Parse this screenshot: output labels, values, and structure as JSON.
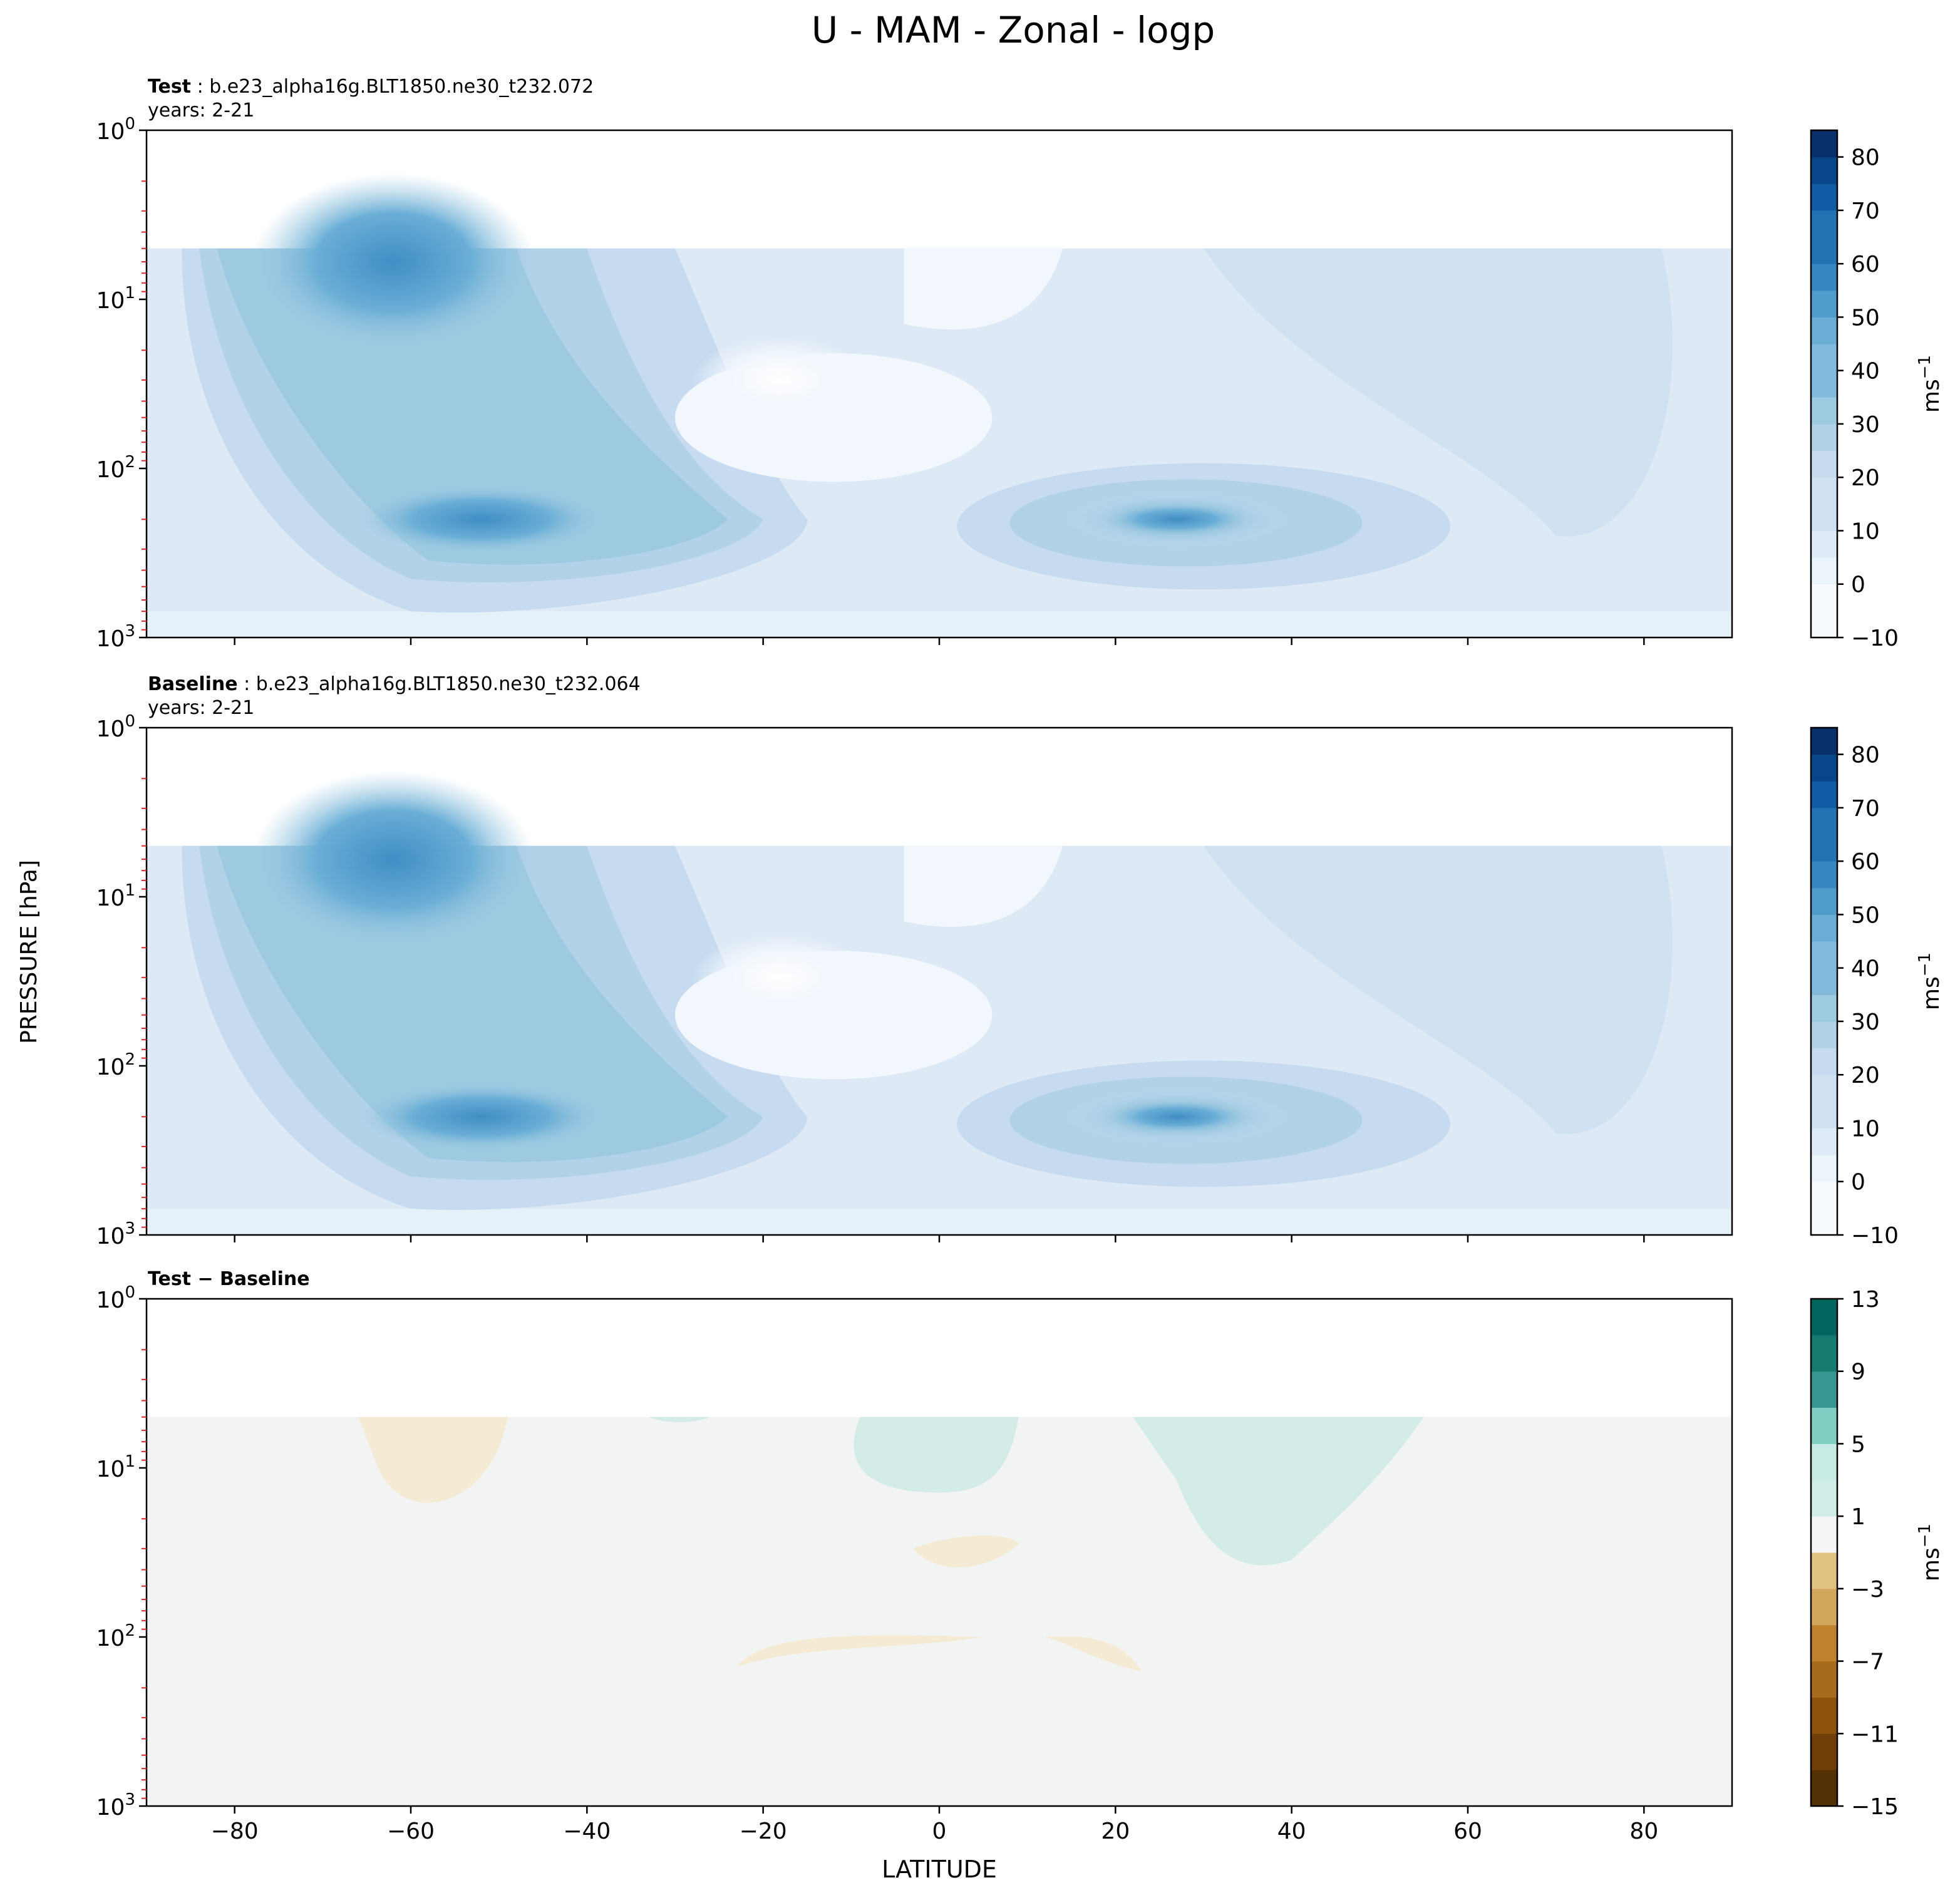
{
  "page_title": "U - MAM - Zonal - logp",
  "ylabel": "PRESSURE [hPa]",
  "xlabel": "LATITUDE",
  "colorbar_unit_base": "ms",
  "colorbar_unit_exp": "−1",
  "panels": [
    {
      "title_bold": "Test",
      "title_rest": " : b.e23_alpha16g.BLT1850.ne30_t232.072",
      "subtitle": "years: 2-21"
    },
    {
      "title_bold": "Baseline",
      "title_rest": " : b.e23_alpha16g.BLT1850.ne30_t232.064",
      "subtitle": "years: 2-21"
    },
    {
      "title_bold": "Test − Baseline",
      "title_rest": "",
      "subtitle": ""
    }
  ],
  "chart_data": [
    {
      "type": "heatmap",
      "panel": "Test",
      "x": {
        "label": "",
        "lim": [
          -90,
          90
        ],
        "ticks": [
          -80,
          -60,
          -40,
          -20,
          0,
          20,
          40,
          60,
          80
        ]
      },
      "y": {
        "label": "PRESSURE [hPa]",
        "scale": "log",
        "lim": [
          1000,
          1
        ],
        "ticks": [
          1,
          10,
          100,
          1000
        ],
        "ticklabels": [
          "10^0",
          "10^1",
          "10^2",
          "10^3"
        ]
      },
      "data_top_hPa": 5,
      "colorbar": {
        "min": -10,
        "max": 85,
        "ticks": [
          -10,
          0,
          10,
          20,
          30,
          40,
          50,
          60,
          70,
          80
        ],
        "unit": "ms^-1",
        "cmap": "Blues"
      },
      "features": [
        {
          "what": "SH stratospheric jet max",
          "lat": -62,
          "hPa": 5,
          "value": 45
        },
        {
          "what": "SH tropospheric jet max",
          "lat": -52,
          "hPa": 200,
          "value": 40
        },
        {
          "what": "NH tropospheric jet max",
          "lat": 27,
          "hPa": 200,
          "value": 42
        },
        {
          "what": "tropical easterly min",
          "lat": -18,
          "hPa": 30,
          "value": -5
        }
      ]
    },
    {
      "type": "heatmap",
      "panel": "Baseline",
      "x": {
        "label": "",
        "lim": [
          -90,
          90
        ],
        "ticks": [
          -80,
          -60,
          -40,
          -20,
          0,
          20,
          40,
          60,
          80
        ]
      },
      "y": {
        "label": "PRESSURE [hPa]",
        "scale": "log",
        "lim": [
          1000,
          1
        ],
        "ticks": [
          1,
          10,
          100,
          1000
        ],
        "ticklabels": [
          "10^0",
          "10^1",
          "10^2",
          "10^3"
        ]
      },
      "data_top_hPa": 5,
      "colorbar": {
        "min": -10,
        "max": 85,
        "ticks": [
          -10,
          0,
          10,
          20,
          30,
          40,
          50,
          60,
          70,
          80
        ],
        "unit": "ms^-1",
        "cmap": "Blues"
      },
      "features": [
        {
          "what": "SH stratospheric jet max",
          "lat": -62,
          "hPa": 5,
          "value": 45
        },
        {
          "what": "SH tropospheric jet max",
          "lat": -52,
          "hPa": 200,
          "value": 40
        },
        {
          "what": "NH tropospheric jet max",
          "lat": 27,
          "hPa": 200,
          "value": 43
        },
        {
          "what": "tropical easterly min",
          "lat": -18,
          "hPa": 30,
          "value": -5
        }
      ]
    },
    {
      "type": "heatmap",
      "panel": "Test − Baseline",
      "x": {
        "label": "LATITUDE",
        "lim": [
          -90,
          90
        ],
        "ticks": [
          -80,
          -60,
          -40,
          -20,
          0,
          20,
          40,
          60,
          80
        ],
        "ticklabels": [
          "−80",
          "−60",
          "−40",
          "−20",
          "0",
          "20",
          "40",
          "60",
          "80"
        ]
      },
      "y": {
        "label": "PRESSURE [hPa]",
        "scale": "log",
        "lim": [
          1000,
          1
        ],
        "ticks": [
          1,
          10,
          100,
          1000
        ],
        "ticklabels": [
          "10^0",
          "10^1",
          "10^2",
          "10^3"
        ]
      },
      "data_top_hPa": 5,
      "colorbar": {
        "min": -15,
        "max": 13,
        "ticks": [
          -15,
          -11,
          -7,
          -3,
          1,
          5,
          9,
          13
        ],
        "unit": "ms^-1",
        "cmap": "BrBG"
      },
      "features": [
        {
          "what": "negative patch",
          "lat": -55,
          "hPa": 8,
          "value": -2
        },
        {
          "what": "positive patch",
          "lat": 0,
          "hPa": 8,
          "value": 2
        },
        {
          "what": "positive patch",
          "lat": 40,
          "hPa": 15,
          "value": 2
        },
        {
          "what": "negative patch",
          "lat": 5,
          "hPa": 35,
          "value": -2
        },
        {
          "what": "negative patch",
          "lat": -10,
          "hPa": 120,
          "value": -2
        }
      ]
    }
  ]
}
